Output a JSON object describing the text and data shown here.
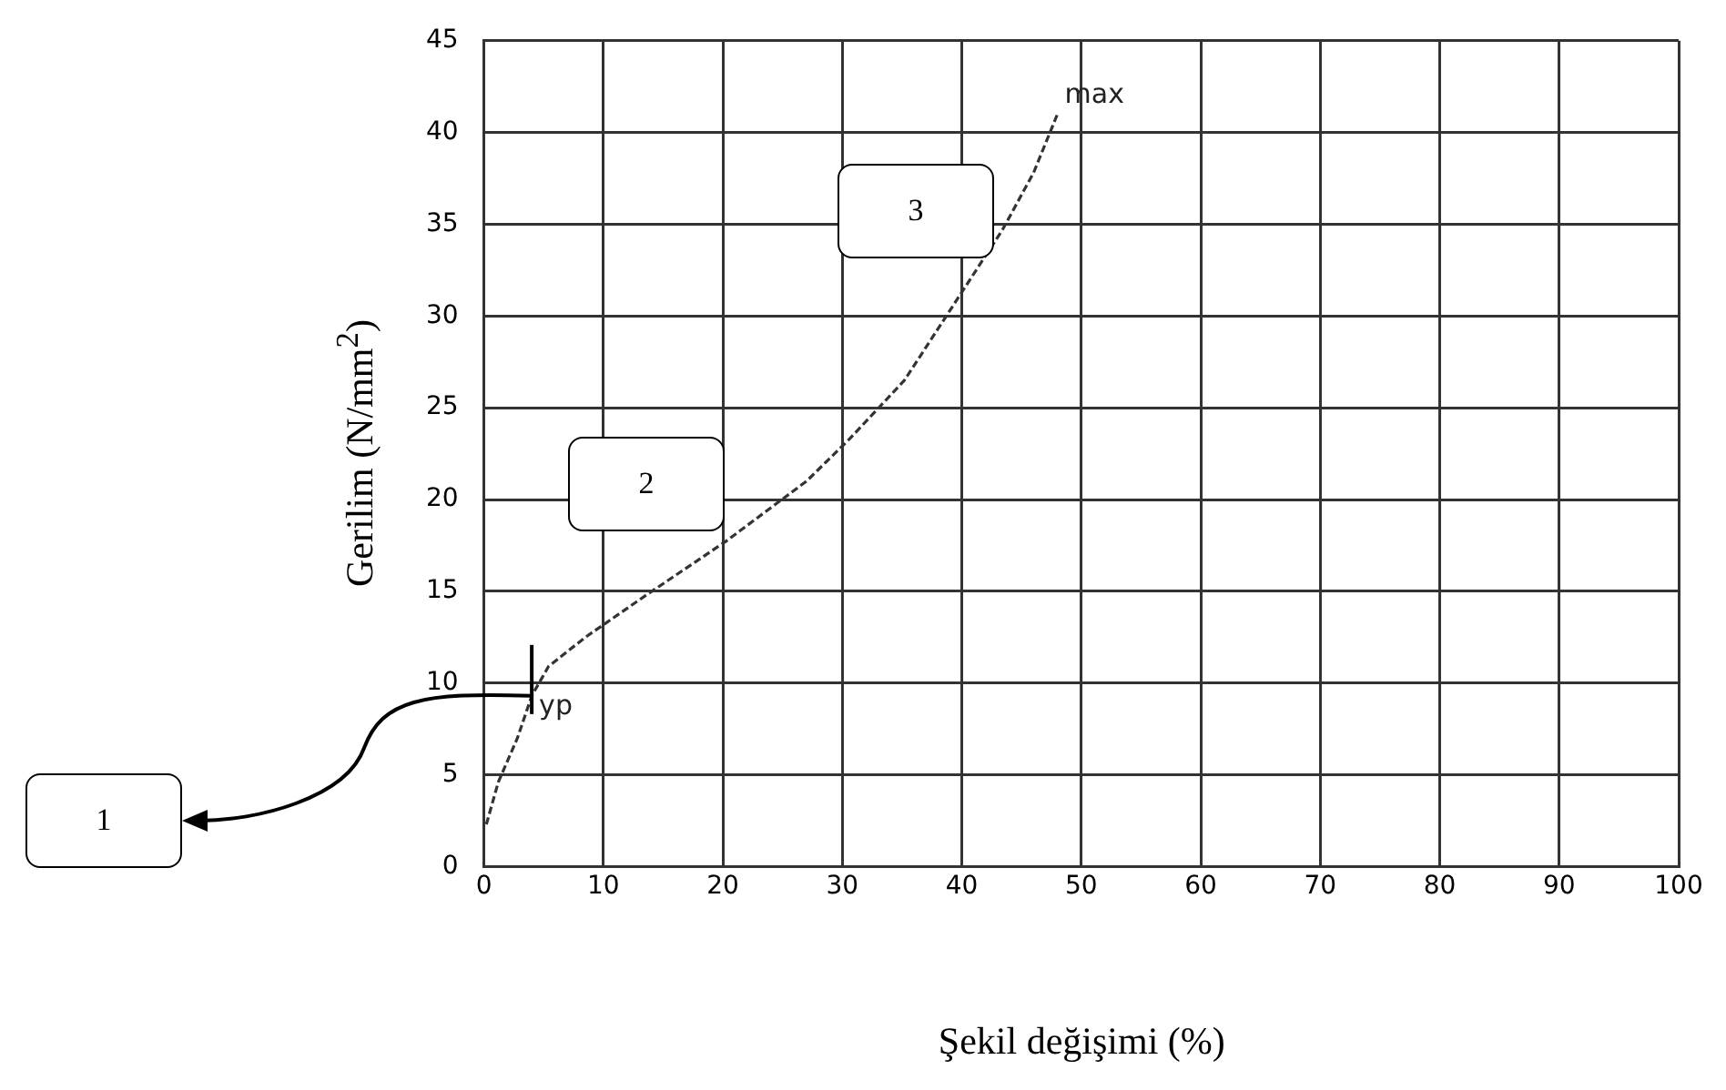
{
  "chart_data": {
    "type": "line",
    "xlabel": "Şekil değişimi (%)",
    "ylabel": "Gerilim (N/mm$^{2}$)",
    "x": [
      0.2,
      1.2,
      2.8,
      4,
      5.4,
      8.5,
      13.6,
      20.2,
      27,
      30.6,
      35.2,
      39.8,
      43.4,
      46,
      48
    ],
    "values": [
      2.3,
      4.6,
      7,
      9.3,
      10.9,
      12.5,
      14.8,
      17.7,
      21,
      23.3,
      26.5,
      31.1,
      34.7,
      37.8,
      41
    ],
    "color": "#333333",
    "xlim": [
      0,
      100
    ],
    "xticks": [
      0,
      10,
      20,
      30,
      40,
      50,
      60,
      70,
      80,
      90,
      100
    ],
    "ylim": [
      0,
      45
    ],
    "yticks": [
      0,
      5,
      10,
      15,
      20,
      25,
      30,
      35,
      40,
      45
    ],
    "grid": true,
    "legend": false,
    "marker": "none",
    "line_style": "dashed",
    "annotations": [
      {
        "text": "yp",
        "x": 4,
        "y": 9.3
      },
      {
        "text": "max",
        "x": 48,
        "y": 41
      },
      "1",
      "2",
      "3"
    ]
  }
}
